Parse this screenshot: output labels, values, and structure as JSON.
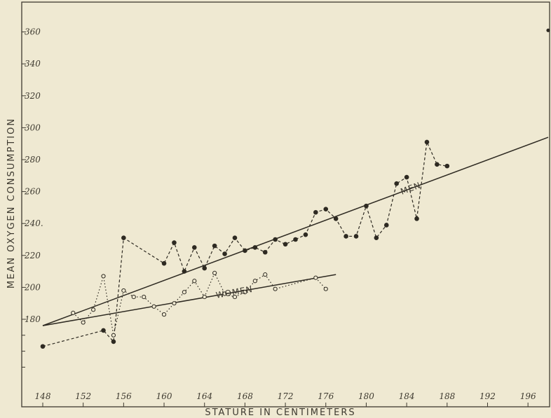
{
  "chart_data": {
    "type": "scatter",
    "title": "",
    "xlabel": "STATURE IN CENTIMETERS",
    "ylabel": "MEAN OXYGEN CONSUMPTION",
    "xlim": [
      148,
      198
    ],
    "ylim": [
      160,
      370
    ],
    "x_ticks": [
      148,
      152,
      156,
      160,
      164,
      168,
      172,
      176,
      180,
      184,
      188,
      192,
      196
    ],
    "x_tick_labels": [
      "148",
      "152",
      "156",
      "160",
      "164",
      "168",
      "172",
      "176",
      "180",
      "184",
      "188",
      "192",
      "196"
    ],
    "y_ticks": [
      180,
      200,
      220,
      240,
      260,
      280,
      300,
      320,
      340,
      360
    ],
    "y_tick_labels": [
      "180",
      "200",
      "220",
      "240.",
      "260",
      "280",
      "300",
      "320",
      "340",
      "360"
    ],
    "grid": false,
    "series": [
      {
        "name": "MEN",
        "marker": "filled",
        "line_style": "dashed",
        "color": "#2e2a22",
        "x": [
          148,
          154,
          155,
          156,
          160,
          161,
          162,
          163,
          164,
          165,
          166,
          167,
          168,
          169,
          170,
          171,
          172,
          173,
          174,
          175,
          176,
          177,
          178,
          179,
          180,
          181,
          182,
          183,
          184,
          185,
          186,
          187,
          188
        ],
        "values": [
          163,
          173,
          166,
          231,
          215,
          228,
          210,
          225,
          212,
          226,
          221,
          231,
          223,
          225,
          222,
          230,
          227,
          230,
          233,
          247,
          249,
          243,
          232,
          232,
          251,
          231,
          239,
          265,
          269,
          243,
          291,
          277,
          276
        ],
        "trend": {
          "x": [
            148,
            198
          ],
          "y": [
            176,
            294
          ]
        }
      },
      {
        "name": "WOMEN",
        "marker": "open",
        "line_style": "dotted",
        "color": "#2e2a22",
        "x": [
          151,
          152,
          153,
          154,
          155,
          156,
          157,
          158,
          159,
          160,
          161,
          162,
          163,
          164,
          165,
          166,
          167,
          168,
          169,
          170,
          171,
          175,
          176
        ],
        "values": [
          184,
          178,
          186,
          207,
          170,
          198,
          194,
          194,
          188,
          183,
          190,
          197,
          204,
          194,
          209,
          196,
          194,
          197,
          204,
          208,
          199,
          206,
          199
        ],
        "trend": {
          "x": [
            148,
            177
          ],
          "y": [
            176,
            208
          ]
        }
      }
    ],
    "stray_points": [
      {
        "x": 198,
        "y": 361
      }
    ]
  }
}
